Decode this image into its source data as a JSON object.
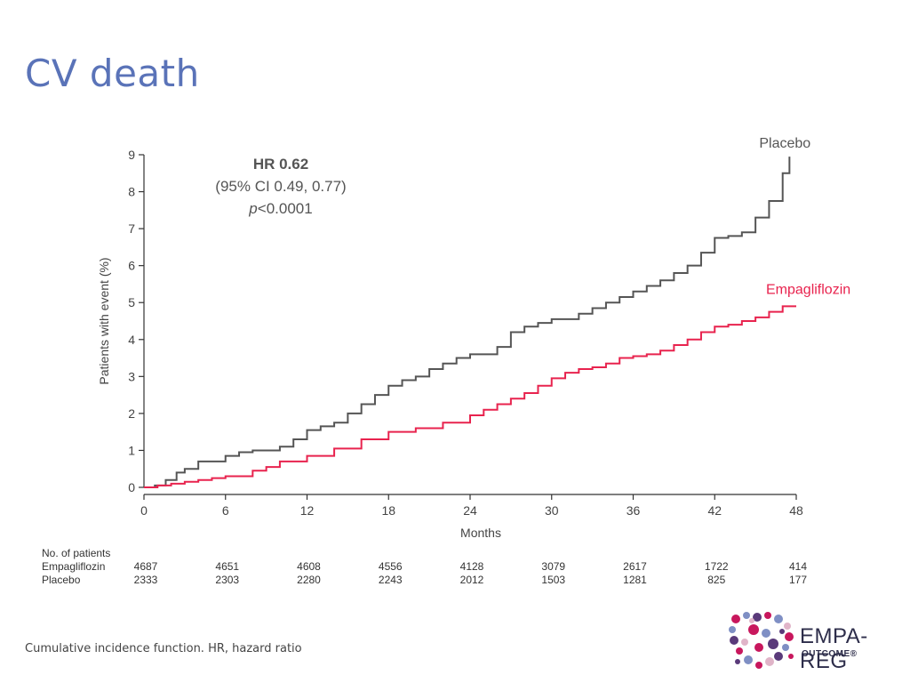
{
  "slide": {
    "title": "CV death",
    "footnote": "Cumulative incidence function. HR, hazard ratio"
  },
  "stats": {
    "hr": "HR 0.62",
    "ci": "(95% CI 0.49, 0.77)",
    "p_italic": "p",
    "p_value": "<0.0001"
  },
  "logo": {
    "name": "EMPA-REG",
    "sub": "OUTCOME®",
    "colors": [
      "#c8175d",
      "#7f8fc4",
      "#5a3a7a",
      "#e0b4c8"
    ]
  },
  "chart_data": {
    "type": "line",
    "step": true,
    "xlabel": "Months",
    "ylabel": "Patients with event (%)",
    "xlim": [
      0,
      48
    ],
    "ylim": [
      0,
      9
    ],
    "xticks": [
      0,
      6,
      12,
      18,
      24,
      30,
      36,
      42,
      48
    ],
    "yticks": [
      0,
      1,
      2,
      3,
      4,
      5,
      6,
      7,
      8,
      9
    ],
    "series": [
      {
        "name": "Placebo",
        "color": "#555555",
        "x": [
          0,
          0.8,
          1.6,
          2.4,
          3,
          4,
          6,
          7,
          8,
          10,
          11,
          12,
          13,
          14,
          15,
          16,
          17,
          18,
          19,
          20,
          21,
          22,
          23,
          24,
          26,
          27,
          28,
          29,
          30,
          32,
          33,
          34,
          35,
          36,
          37,
          38,
          39,
          40,
          41,
          42,
          43,
          44,
          45,
          46,
          47,
          47.5
        ],
        "y": [
          0,
          0.05,
          0.2,
          0.4,
          0.5,
          0.7,
          0.85,
          0.95,
          1.0,
          1.1,
          1.3,
          1.55,
          1.65,
          1.75,
          2.0,
          2.25,
          2.5,
          2.75,
          2.9,
          3.0,
          3.2,
          3.35,
          3.5,
          3.6,
          3.8,
          4.2,
          4.35,
          4.45,
          4.55,
          4.7,
          4.85,
          5.0,
          5.15,
          5.3,
          5.45,
          5.6,
          5.8,
          6.0,
          6.35,
          6.75,
          6.8,
          6.9,
          7.3,
          7.75,
          8.5,
          8.95
        ]
      },
      {
        "name": "Empagliflozin",
        "color": "#e8234e",
        "x": [
          0,
          1,
          2,
          3,
          4,
          5,
          6,
          8,
          9,
          10,
          12,
          14,
          16,
          18,
          20,
          22,
          24,
          25,
          26,
          27,
          28,
          29,
          30,
          31,
          32,
          33,
          34,
          35,
          36,
          37,
          38,
          39,
          40,
          41,
          42,
          43,
          44,
          45,
          46,
          47,
          48
        ],
        "y": [
          0,
          0.05,
          0.1,
          0.15,
          0.2,
          0.25,
          0.3,
          0.45,
          0.55,
          0.7,
          0.85,
          1.05,
          1.3,
          1.5,
          1.6,
          1.75,
          1.95,
          2.1,
          2.25,
          2.4,
          2.55,
          2.75,
          2.95,
          3.1,
          3.2,
          3.25,
          3.35,
          3.5,
          3.55,
          3.6,
          3.7,
          3.85,
          4.0,
          4.2,
          4.35,
          4.4,
          4.5,
          4.6,
          4.75,
          4.9,
          4.9
        ]
      }
    ],
    "risk_table": {
      "header": "No. of patients",
      "times": [
        0,
        6,
        12,
        18,
        24,
        30,
        36,
        42,
        48
      ],
      "rows": [
        {
          "label": "Empagliflozin",
          "values": [
            "4687",
            "4651",
            "4608",
            "4556",
            "4128",
            "3079",
            "2617",
            "1722",
            "414"
          ]
        },
        {
          "label": "Placebo",
          "values": [
            "2333",
            "2303",
            "2280",
            "2243",
            "2012",
            "1503",
            "1281",
            "825",
            "177"
          ]
        }
      ]
    }
  }
}
